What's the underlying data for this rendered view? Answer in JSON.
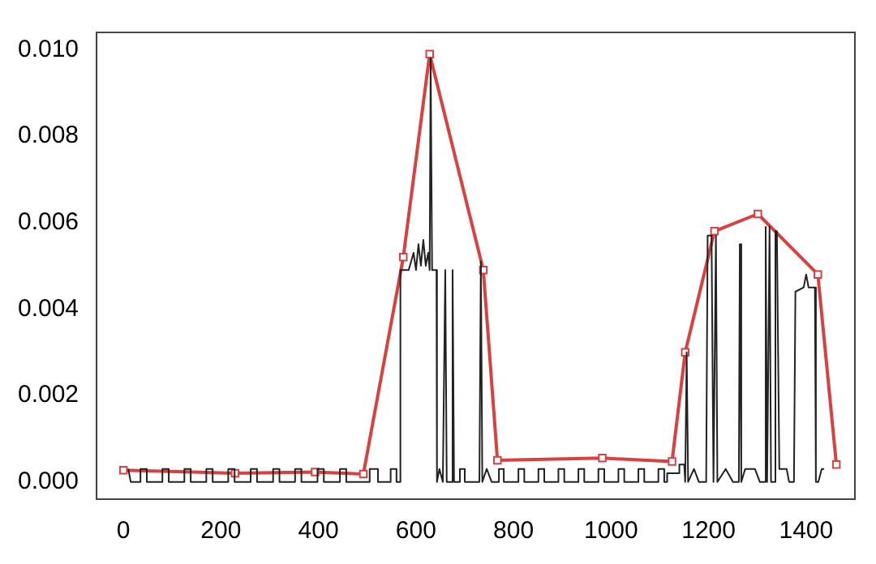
{
  "chart_data": {
    "type": "line",
    "xlim": [
      -55,
      1500
    ],
    "ylim": [
      -0.0004,
      0.0104
    ],
    "xticks": [
      0,
      200,
      400,
      600,
      800,
      1000,
      1200,
      1400
    ],
    "yticks": [
      {
        "value": 0,
        "label": "0.000"
      },
      {
        "value": 0.002,
        "label": "0.002"
      },
      {
        "value": 0.004,
        "label": "0.004"
      },
      {
        "value": 0.006,
        "label": "0.006"
      },
      {
        "value": 0.008,
        "label": "0.008"
      },
      {
        "value": 0.01,
        "label": "0.010"
      }
    ],
    "grid": false,
    "legend": false,
    "series": [
      {
        "color": "#222222",
        "marker": "none",
        "x": [
          10,
          15,
          35,
          35,
          48,
          48,
          80,
          80,
          93,
          93,
          125,
          125,
          138,
          138,
          170,
          170,
          183,
          183,
          215,
          215,
          228,
          228,
          261,
          261,
          274,
          274,
          307,
          307,
          320,
          320,
          352,
          352,
          365,
          365,
          398,
          398,
          411,
          411,
          444,
          444,
          457,
          457,
          505,
          505,
          522,
          522,
          548,
          548,
          560,
          560,
          568,
          568,
          585,
          595,
          600,
          605,
          610,
          615,
          620,
          625,
          628,
          630,
          633,
          642,
          643,
          648,
          655,
          660,
          663,
          673,
          675,
          678,
          690,
          690,
          700,
          700,
          730,
          733,
          736,
          745,
          755,
          770,
          770,
          780,
          780,
          810,
          810,
          822,
          822,
          851,
          851,
          863,
          863,
          892,
          892,
          904,
          904,
          933,
          933,
          945,
          945,
          974,
          974,
          986,
          986,
          1015,
          1015,
          1027,
          1027,
          1056,
          1056,
          1068,
          1068,
          1097,
          1097,
          1109,
          1109,
          1115,
          1115,
          1140,
          1140,
          1150,
          1152,
          1155,
          1158,
          1170,
          1180,
          1195,
          1198,
          1206,
          1210,
          1215,
          1218,
          1235,
          1250,
          1262,
          1264,
          1267,
          1275,
          1295,
          1305,
          1315,
          1317,
          1320,
          1325,
          1328,
          1335,
          1337,
          1340,
          1345,
          1360,
          1365,
          1375,
          1378,
          1395,
          1400,
          1405,
          1418,
          1420,
          1425,
          1432,
          1437
        ],
        "values": [
          0.0003,
          0,
          0,
          0.0003,
          0.0003,
          0,
          0,
          0.0003,
          0.0003,
          0,
          0,
          0.0003,
          0.0003,
          0,
          0,
          0.0003,
          0.0003,
          0,
          0,
          0.0003,
          0.0003,
          0,
          0,
          0.0003,
          0.0003,
          0,
          0,
          0.0003,
          0.0003,
          0,
          0,
          0.0003,
          0.0003,
          0,
          0,
          0.0003,
          0.0003,
          0,
          0,
          0.0003,
          0.0003,
          0,
          0,
          0.0003,
          0.0003,
          0,
          0,
          0.0003,
          0.0003,
          0,
          0,
          0.0049,
          0.0049,
          0.0053,
          0.0049,
          0.0055,
          0.005,
          0.0056,
          0.005,
          0.0053,
          0.0049,
          0.0098,
          0.0049,
          0.0049,
          0,
          0.0003,
          0,
          0.0049,
          0,
          0,
          0.0049,
          0,
          0,
          0.0003,
          0.0003,
          0,
          0,
          0.0051,
          0,
          0.0003,
          0,
          0,
          0.0003,
          0.0003,
          0,
          0,
          0.0003,
          0.0003,
          0,
          0,
          0.0003,
          0.0003,
          0,
          0,
          0.0003,
          0.0003,
          0,
          0,
          0.0003,
          0.0003,
          0,
          0,
          0.0003,
          0.0003,
          0,
          0,
          0.0003,
          0.0003,
          0,
          0,
          0.0003,
          0.0003,
          0,
          0,
          0.0003,
          0.0003,
          0,
          0,
          0.0002,
          0.0002,
          0.0004,
          0.0004,
          0,
          0.003,
          0,
          0.0003,
          0,
          0,
          0.0057,
          0.0057,
          0,
          0.0057,
          0,
          0.0003,
          0,
          0,
          0.0055,
          0,
          0.0003,
          0.0003,
          0,
          0,
          0.0059,
          0,
          0.0059,
          0,
          0,
          0.0058,
          0.0058,
          0.0003,
          0.0003,
          0,
          0,
          0.0044,
          0.0045,
          0.0048,
          0.0045,
          0.0045,
          0,
          0,
          0.0003,
          0.0003
        ]
      },
      {
        "color": "#d94040",
        "marker": "square",
        "x": [
          0,
          229,
          393,
          492,
          574,
          628,
          738,
          767,
          982,
          1125,
          1152,
          1212,
          1301,
          1424,
          1462
        ],
        "values": [
          0.00027,
          0.0002,
          0.00023,
          0.00018,
          0.0052,
          0.0099,
          0.0049,
          0.0005,
          0.00055,
          0.00047,
          0.003,
          0.0058,
          0.0062,
          0.0048,
          0.0004
        ]
      }
    ]
  }
}
